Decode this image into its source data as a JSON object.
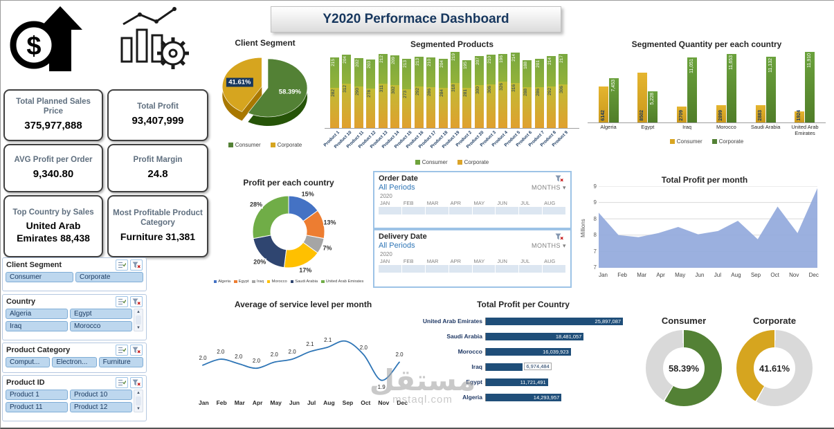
{
  "meta": {
    "title": "Y2020 Performace Dashboard"
  },
  "kpis": [
    {
      "label": "Total Planned Sales Price",
      "value": "375,977,888"
    },
    {
      "label": "Total Profit",
      "value": "93,407,999"
    },
    {
      "label": "AVG Profit per Order",
      "value": "9,340.80"
    },
    {
      "label": "Profit Margin",
      "value": "24.8"
    },
    {
      "label": "Top Country by Sales",
      "value": "United Arab Emirates 88,438"
    },
    {
      "label": "Most Profitable Product Category",
      "value": "Furniture 31,381"
    }
  ],
  "slicers": [
    {
      "title": "Client Segment",
      "cols": 2,
      "scroll": false,
      "items": [
        "Consumer",
        "Corporate"
      ]
    },
    {
      "title": "Country",
      "cols": 2,
      "scroll": true,
      "items": [
        "Algeria",
        "Egypt",
        "Iraq",
        "Morocco"
      ]
    },
    {
      "title": "Product Category",
      "cols": 3,
      "scroll": false,
      "items": [
        "Comput...",
        "Electron...",
        "Furniture"
      ]
    },
    {
      "title": "Product ID",
      "cols": 2,
      "scroll": true,
      "items": [
        "Product 1",
        "Product 10",
        "Product 11",
        "Product 12"
      ]
    }
  ],
  "timelines": [
    {
      "title": "Order Date",
      "period": "All Periods",
      "granularity": "MONTHS",
      "year": "2020",
      "months": [
        "JAN",
        "FEB",
        "MAR",
        "APR",
        "MAY",
        "JUN",
        "JUL",
        "AUG"
      ]
    },
    {
      "title": "Delivery Date",
      "period": "All Periods",
      "granularity": "MONTHS",
      "year": "2020",
      "months": [
        "JAN",
        "FEB",
        "MAR",
        "APR",
        "MAY",
        "JUN",
        "JUL",
        "AUG"
      ]
    }
  ],
  "chart_data": [
    {
      "id": "client_segment",
      "type": "pie",
      "title": "Client Segment",
      "slices": [
        {
          "label": "Consumer",
          "value": 58.39,
          "text": "58.39%",
          "color": "#538135"
        },
        {
          "label": "Corporate",
          "value": 41.61,
          "text": "41.61%",
          "color": "#d6a51f",
          "explode": true,
          "label_bg": "#17375e"
        }
      ]
    },
    {
      "id": "segmented_products",
      "type": "bar",
      "stacked": true,
      "title": "Segmented Products",
      "categories": [
        "Product 1",
        "Product 10",
        "Product 11",
        "Product 12",
        "Product 13",
        "Product 14",
        "Product 15",
        "Product 16",
        "Product 17",
        "Product 18",
        "Product 19",
        "Product 2",
        "Product 20",
        "Product 3",
        "Product 4",
        "Product 5",
        "Product 6",
        "Product 7",
        "Product 8",
        "Product 9"
      ],
      "series": [
        {
          "name": "Consumer",
          "color": "#6fa33c",
          "values": [
            215,
            204,
            202,
            203,
            212,
            209,
            213,
            213,
            210,
            204,
            219,
            195,
            207,
            210,
            196,
            214,
            188,
            201,
            214,
            217
          ]
        },
        {
          "name": "Corporate",
          "color": "#dba429",
          "values": [
            282,
            312,
            290,
            278,
            311,
            302,
            273,
            292,
            286,
            284,
            318,
            281,
            300,
            306,
            326,
            316,
            288,
            286,
            292,
            306
          ]
        }
      ]
    },
    {
      "id": "quantity_per_country",
      "type": "bar",
      "stacked": false,
      "title": "Segmented Quantity per each country",
      "categories": [
        "Algeria",
        "Egypt",
        "Iraq",
        "Morocco",
        "Saudi Arabia",
        "United Arab Emirates"
      ],
      "ymax": 12200,
      "series": [
        {
          "name": "Consumer",
          "color": "#d9a521",
          "values": [
            6142,
            8502,
            2709,
            2899,
            2883,
            1924
          ],
          "labels": [
            "6142",
            "8502",
            "2709",
            "2899",
            "2883",
            "1924"
          ]
        },
        {
          "name": "Corporate",
          "color": "#538135",
          "values": [
            7453,
            5228,
            11051,
            11653,
            11132,
            11910
          ],
          "labels": [
            "7,453",
            "5,228",
            "11,051",
            "11,653",
            "11,132",
            "11,910"
          ]
        }
      ]
    },
    {
      "id": "profit_share",
      "type": "pie",
      "subtype": "donut",
      "title": "Profit per each country",
      "slices": [
        {
          "label": "Algeria",
          "value": 15,
          "text": "15%",
          "color": "#4472c4"
        },
        {
          "label": "Egypt",
          "value": 13,
          "text": "13%",
          "color": "#ed7d31"
        },
        {
          "label": "Iraq",
          "value": 7,
          "text": "7%",
          "color": "#a5a5a5"
        },
        {
          "label": "Morocco",
          "value": 17,
          "text": "17%",
          "color": "#ffc000"
        },
        {
          "label": "Saudi Arabia",
          "value": 20,
          "text": "20%",
          "color": "#2f4570"
        },
        {
          "label": "United Arab Emirates",
          "value": 28,
          "text": "28%",
          "color": "#70ad47"
        }
      ]
    },
    {
      "id": "profit_per_month",
      "type": "area",
      "title": "Total Profit per month",
      "x": [
        "Jan",
        "Feb",
        "Mar",
        "Apr",
        "May",
        "Jun",
        "Jul",
        "Aug",
        "Sep",
        "Oct",
        "Nov",
        "Dec"
      ],
      "values": [
        8.35,
        7.8,
        7.75,
        7.85,
        8.0,
        7.82,
        7.9,
        8.15,
        7.7,
        8.5,
        7.85,
        8.95
      ],
      "ymin": 7,
      "ymax": 9,
      "yticks": [
        "9",
        "9",
        "8",
        "8",
        "7",
        "7"
      ],
      "ylabel": "Millions",
      "color": "#93a9dc"
    },
    {
      "id": "service_level",
      "type": "line",
      "title": "Average of service level per month",
      "x": [
        "Jan",
        "Feb",
        "Mar",
        "Apr",
        "May",
        "Jun",
        "Jul",
        "Aug",
        "Sep",
        "Oct",
        "Nov",
        "Dec"
      ],
      "values": [
        1.98,
        2.02,
        1.99,
        1.96,
        2.0,
        2.02,
        2.07,
        2.1,
        2.14,
        2.05,
        1.88,
        2.0
      ],
      "labels": [
        "2.0",
        "2.0",
        "2.0",
        "2.0",
        "2.0",
        "2.0",
        "2.1",
        "2.1",
        "",
        "2.0",
        "1.9",
        "2.0"
      ],
      "ymin": 1.8,
      "ymax": 2.25,
      "color": "#2e75b6"
    },
    {
      "id": "profit_per_country",
      "type": "hbar",
      "title": "Total Profit per Country",
      "categories": [
        "United Arab Emirates",
        "Saudi Arabia",
        "Morocco",
        "Iraq",
        "Egypt",
        "Algeria"
      ],
      "values": [
        25897087,
        18481057,
        16039923,
        6974484,
        11721491,
        14293957
      ],
      "labels": [
        "25,897,087",
        "18,481,057",
        "16,039,923",
        "6,974,484",
        "11,721,491",
        "14,293,957"
      ],
      "color": "#1f4e79"
    },
    {
      "id": "consumer_share",
      "type": "gauge",
      "title": "Consumer",
      "percent": 58.39,
      "text": "58.39%",
      "color": "#538135",
      "track": "#d9d9d9",
      "start_deg": 0
    },
    {
      "id": "corporate_share",
      "type": "gauge",
      "title": "Corporate",
      "percent": 41.61,
      "text": "41.61%",
      "color": "#d6a51f",
      "track": "#d9d9d9",
      "start_deg": 210
    }
  ],
  "watermark": {
    "arabic": "مستقل",
    "latin": "mstaql.com"
  }
}
